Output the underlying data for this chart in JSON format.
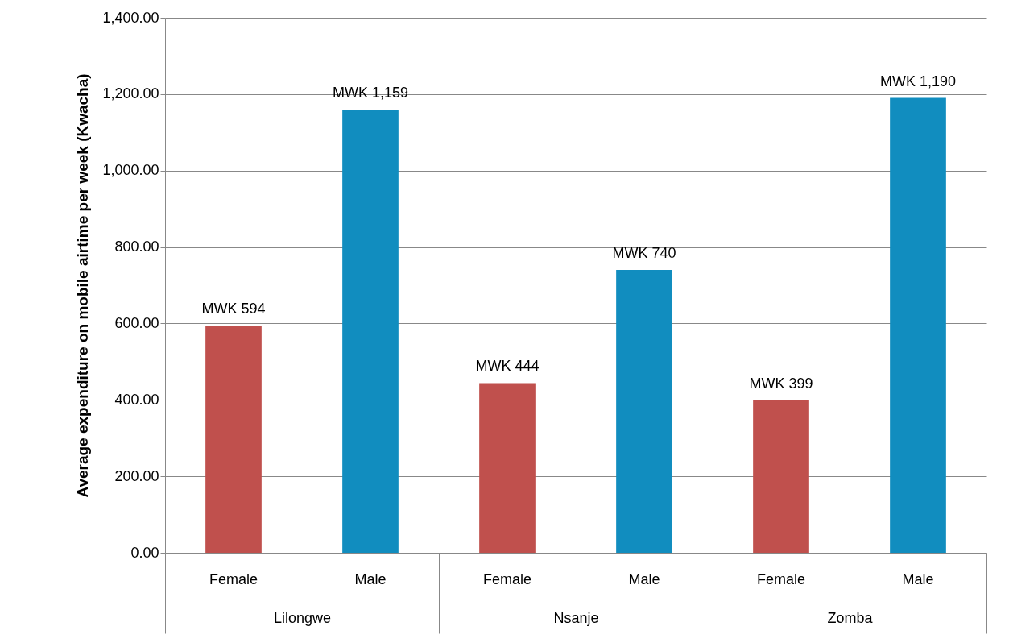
{
  "chart_data": {
    "type": "bar",
    "ylabel": "Average expenditure on mobile airtime  per week (Kwacha)",
    "categories": [
      "Lilongwe",
      "Nsanje",
      "Zomba"
    ],
    "series": [
      {
        "name": "Female",
        "color": "#c0504d",
        "values": [
          594,
          444,
          399
        ],
        "value_labels": [
          "MWK 594",
          "MWK 444",
          "MWK 399"
        ]
      },
      {
        "name": "Male",
        "color": "#118dbf",
        "values": [
          1159,
          740,
          1190
        ],
        "value_labels": [
          "MWK 1,159",
          "MWK 740",
          "MWK 1,190"
        ]
      }
    ],
    "ylim": [
      0,
      1400
    ],
    "yticks": [
      {
        "value": 0,
        "label": "0.00"
      },
      {
        "value": 200,
        "label": "200.00"
      },
      {
        "value": 400,
        "label": "400.00"
      },
      {
        "value": 600,
        "label": "600.00"
      },
      {
        "value": 800,
        "label": "800.00"
      },
      {
        "value": 1000,
        "label": "1,000.00"
      },
      {
        "value": 1200,
        "label": "1,200.00"
      },
      {
        "value": 1400,
        "label": "1,400.00"
      }
    ],
    "grid": "y",
    "legend": false
  }
}
